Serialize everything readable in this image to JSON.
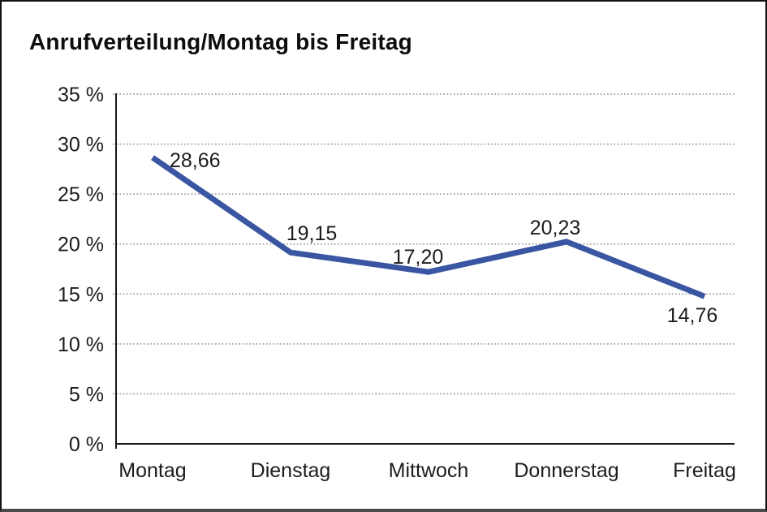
{
  "window": {
    "background_color": "#ffffff",
    "border_color": "#121212"
  },
  "chart_data": {
    "type": "line",
    "title": "Anrufverteilung/Montag bis Freitag",
    "categories": [
      "Montag",
      "Dienstag",
      "Mittwoch",
      "Donnerstag",
      "Freitag"
    ],
    "values": [
      28.66,
      19.15,
      17.2,
      20.23,
      14.76
    ],
    "value_labels": [
      "28,66",
      "19,15",
      "17,20",
      "20,23",
      "14,76"
    ],
    "yticks": [
      0,
      5,
      10,
      15,
      20,
      25,
      30,
      35
    ],
    "ytick_labels": [
      "0 %",
      "5 %",
      "10 %",
      "15 %",
      "20 %",
      "25 %",
      "30 %",
      "35 %"
    ],
    "ylim": [
      0,
      35
    ],
    "xlabel": "",
    "ylabel": "",
    "grid": "horizontal-dotted",
    "legend": "none",
    "line_color": "#3A56A2"
  }
}
